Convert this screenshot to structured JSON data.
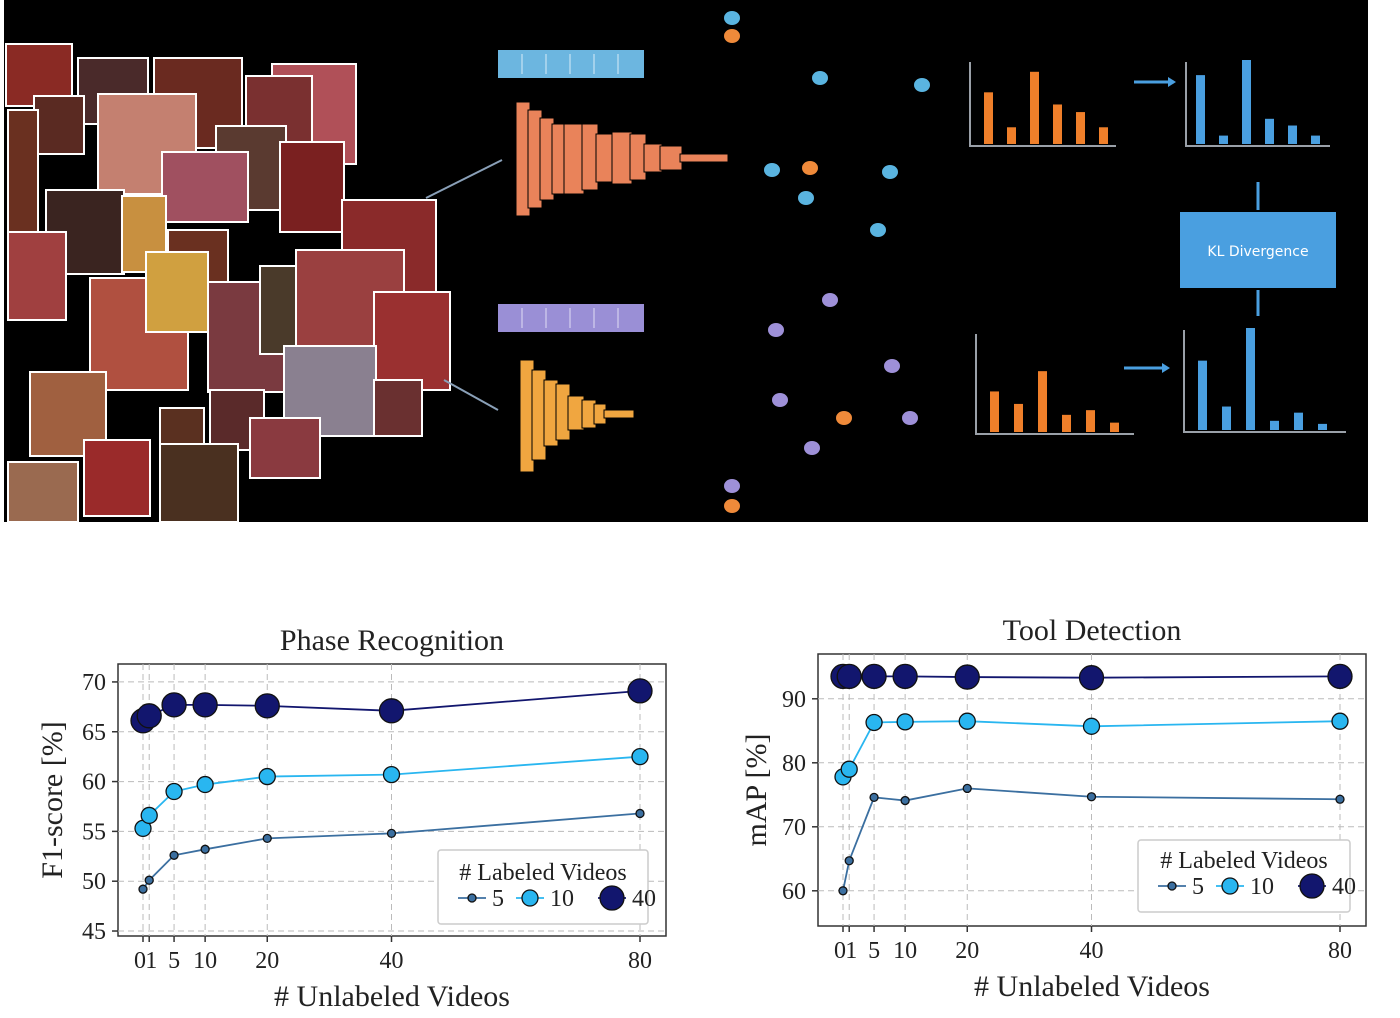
{
  "diagram": {
    "kl_box_label": "KL Divergence",
    "colors": {
      "background": "#000000",
      "teacher_net": "#e9835a",
      "student_net": "#f0a640",
      "token_teacher": "#6cb6e0",
      "token_student": "#9a8fd6",
      "embed_blue": "#5ab4e0",
      "embed_purple": "#9e90d8",
      "embed_orange": "#ef8a3a",
      "hist_orange": "#ef7f2a",
      "hist_blue": "#4a9fe0",
      "kl_box": "#4a9fe0"
    },
    "hist_top_left": [
      0.68,
      0.22,
      0.95,
      0.52,
      0.42,
      0.22
    ],
    "hist_top_right": [
      0.82,
      0.1,
      1.0,
      0.3,
      0.22,
      0.1
    ],
    "hist_bottom_left": [
      0.52,
      0.36,
      0.78,
      0.22,
      0.28,
      0.12
    ],
    "hist_bottom_right": [
      0.68,
      0.23,
      1.0,
      0.09,
      0.17,
      0.06
    ]
  },
  "chart_data": [
    {
      "type": "line",
      "title": "Phase Recognition",
      "xlabel": "# Unlabeled Videos",
      "ylabel": "F1-score [%]",
      "x": [
        0,
        1,
        5,
        10,
        20,
        40,
        80
      ],
      "xticks": [
        "0",
        "1",
        "5",
        "10",
        "20",
        "40",
        "80"
      ],
      "yticks": [
        45,
        50,
        55,
        60,
        65,
        70
      ],
      "ylim": [
        44.5,
        71.8
      ],
      "grid": true,
      "legend_title": "# Labeled Videos",
      "legend_position": "bottom-right",
      "series": [
        {
          "name": "5",
          "color": "#3b6fa0",
          "marker": "small",
          "values": [
            49.2,
            50.1,
            52.6,
            53.2,
            54.3,
            54.8,
            56.8
          ]
        },
        {
          "name": "10",
          "color": "#29b6f0",
          "marker": "medium",
          "values": [
            55.3,
            56.6,
            59.0,
            59.7,
            60.5,
            60.7,
            62.5
          ]
        },
        {
          "name": "40",
          "color": "#12166e",
          "marker": "large",
          "values": [
            66.1,
            66.6,
            67.7,
            67.7,
            67.6,
            67.1,
            69.1
          ]
        }
      ]
    },
    {
      "type": "line",
      "title": "Tool Detection",
      "xlabel": "# Unlabeled Videos",
      "ylabel": "mAP [%]",
      "x": [
        0,
        1,
        5,
        10,
        20,
        40,
        80
      ],
      "xticks": [
        "0",
        "1",
        "5",
        "10",
        "20",
        "40",
        "80"
      ],
      "yticks": [
        60,
        70,
        80,
        90
      ],
      "ylim": [
        54.5,
        97
      ],
      "grid": true,
      "legend_title": "# Labeled Videos",
      "legend_position": "bottom-right",
      "series": [
        {
          "name": "5",
          "color": "#3b6fa0",
          "marker": "small",
          "values": [
            60.0,
            64.7,
            74.6,
            74.1,
            76.0,
            74.7,
            74.3
          ]
        },
        {
          "name": "10",
          "color": "#29b6f0",
          "marker": "medium",
          "values": [
            77.8,
            79.0,
            86.3,
            86.4,
            86.5,
            85.7,
            86.5
          ]
        },
        {
          "name": "40",
          "color": "#12166e",
          "marker": "large",
          "values": [
            93.5,
            93.5,
            93.5,
            93.5,
            93.4,
            93.3,
            93.5
          ]
        }
      ]
    }
  ]
}
